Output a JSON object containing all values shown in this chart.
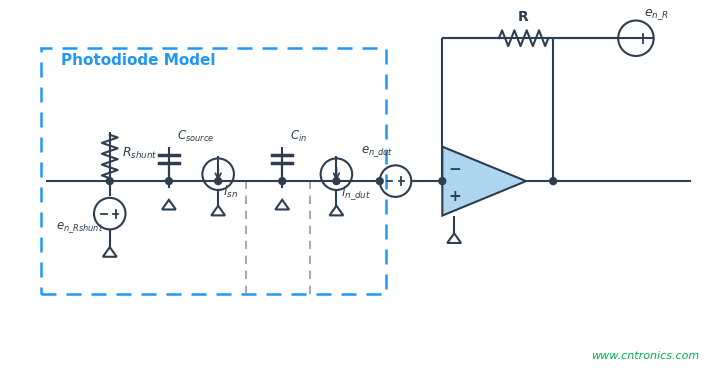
{
  "bg_color": "#ffffff",
  "watermark": "www.cntronics.com",
  "watermark_color": "#00b050",
  "wire_color": "#2c3e50",
  "component_color": "#2c3e50",
  "opamp_fill": "#aed6f1",
  "opamp_stroke": "#2c3e50",
  "pd_box_color": "#2196F3",
  "pd_label": "Photodiode Model"
}
